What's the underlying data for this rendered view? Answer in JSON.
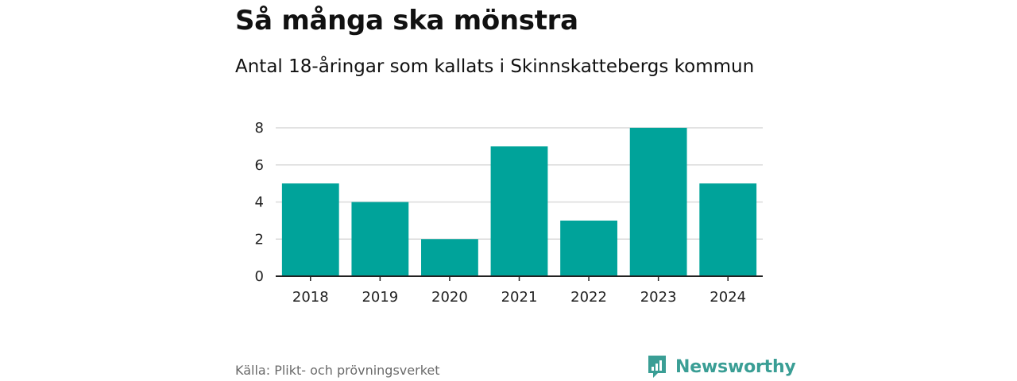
{
  "chart_data": {
    "type": "bar",
    "title": "Så många ska mönstra",
    "subtitle": "Antal 18-åringar som kallats i Skinnskattebergs kommun",
    "categories": [
      "2018",
      "2019",
      "2020",
      "2021",
      "2022",
      "2023",
      "2024"
    ],
    "values": [
      5,
      4,
      2,
      7,
      3,
      8,
      5
    ],
    "xlabel": "",
    "ylabel": "",
    "ylim": [
      0,
      8
    ],
    "yticks": [
      "0",
      "2",
      "4",
      "6",
      "8"
    ],
    "grid": true,
    "bar_color": "#00a39a"
  },
  "footer": {
    "source": "Källa: Plikt- och prövningsverket",
    "brand": "Newsworthy",
    "brand_color": "#3a9e95"
  }
}
